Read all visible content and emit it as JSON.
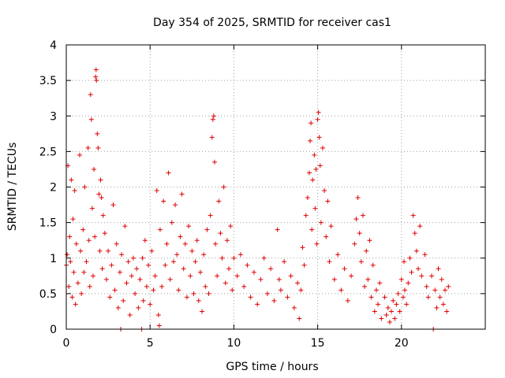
{
  "chart_data": {
    "type": "scatter",
    "title": "Day 354 of 2025, SRMTID for receiver cas1",
    "xlabel": "GPS time / hours",
    "ylabel": "SRMTID / TECUs",
    "xlim": [
      0,
      25
    ],
    "ylim": [
      0,
      4
    ],
    "xticks": [
      0,
      5,
      10,
      15,
      20
    ],
    "yticks": [
      0,
      0.5,
      1,
      1.5,
      2,
      2.5,
      3,
      3.5,
      4
    ],
    "grid": true,
    "marker": "+",
    "color": "#e00000",
    "series": [
      {
        "name": "SRMTID",
        "points": [
          [
            0.0,
            0.9
          ],
          [
            0.05,
            1.05
          ],
          [
            0.1,
            2.3
          ],
          [
            0.15,
            0.6
          ],
          [
            0.2,
            1.3
          ],
          [
            0.25,
            0.95
          ],
          [
            0.3,
            2.1
          ],
          [
            0.35,
            0.45
          ],
          [
            0.4,
            1.55
          ],
          [
            0.45,
            0.8
          ],
          [
            0.5,
            1.95
          ],
          [
            0.55,
            0.35
          ],
          [
            0.6,
            1.2
          ],
          [
            0.7,
            0.65
          ],
          [
            0.8,
            2.45
          ],
          [
            0.85,
            1.1
          ],
          [
            0.9,
            0.5
          ],
          [
            1.0,
            1.4
          ],
          [
            1.05,
            0.8
          ],
          [
            1.1,
            2.0
          ],
          [
            1.2,
            0.95
          ],
          [
            1.3,
            2.55
          ],
          [
            1.35,
            1.25
          ],
          [
            1.4,
            0.6
          ],
          [
            1.45,
            3.3
          ],
          [
            1.5,
            2.95
          ],
          [
            1.55,
            1.7
          ],
          [
            1.6,
            0.75
          ],
          [
            1.65,
            2.25
          ],
          [
            1.7,
            1.3
          ],
          [
            1.75,
            3.55
          ],
          [
            1.78,
            3.65
          ],
          [
            1.8,
            3.5
          ],
          [
            1.85,
            2.75
          ],
          [
            1.9,
            2.55
          ],
          [
            1.95,
            1.9
          ],
          [
            2.0,
            1.1
          ],
          [
            2.05,
            2.1
          ],
          [
            2.1,
            1.85
          ],
          [
            2.15,
            0.85
          ],
          [
            2.2,
            1.6
          ],
          [
            2.3,
            1.35
          ],
          [
            2.4,
            0.7
          ],
          [
            2.5,
            1.1
          ],
          [
            2.6,
            0.45
          ],
          [
            2.7,
            0.9
          ],
          [
            2.8,
            1.75
          ],
          [
            2.9,
            0.55
          ],
          [
            3.0,
            1.2
          ],
          [
            3.1,
            0.3
          ],
          [
            3.2,
            0.8
          ],
          [
            3.25,
            0.0
          ],
          [
            3.3,
            1.05
          ],
          [
            3.4,
            0.4
          ],
          [
            3.5,
            1.45
          ],
          [
            3.6,
            0.65
          ],
          [
            3.7,
            0.95
          ],
          [
            3.8,
            0.2
          ],
          [
            3.9,
            0.75
          ],
          [
            4.0,
            1.0
          ],
          [
            4.1,
            0.5
          ],
          [
            4.2,
            0.85
          ],
          [
            4.3,
            0.3
          ],
          [
            4.4,
            0.7
          ],
          [
            4.5,
            0.0
          ],
          [
            4.55,
            1.0
          ],
          [
            4.6,
            0.4
          ],
          [
            4.7,
            1.25
          ],
          [
            4.8,
            0.6
          ],
          [
            4.9,
            0.9
          ],
          [
            5.0,
            0.35
          ],
          [
            5.1,
            1.1
          ],
          [
            5.2,
            0.55
          ],
          [
            5.3,
            0.75
          ],
          [
            5.4,
            1.95
          ],
          [
            5.5,
            0.2
          ],
          [
            5.55,
            0.05
          ],
          [
            5.6,
            1.4
          ],
          [
            5.7,
            0.6
          ],
          [
            5.8,
            1.8
          ],
          [
            5.9,
            0.9
          ],
          [
            6.0,
            1.2
          ],
          [
            6.1,
            2.2
          ],
          [
            6.2,
            0.7
          ],
          [
            6.3,
            1.5
          ],
          [
            6.4,
            0.95
          ],
          [
            6.5,
            1.75
          ],
          [
            6.6,
            1.05
          ],
          [
            6.7,
            0.55
          ],
          [
            6.8,
            1.3
          ],
          [
            6.9,
            1.9
          ],
          [
            7.0,
            0.85
          ],
          [
            7.1,
            1.2
          ],
          [
            7.2,
            0.45
          ],
          [
            7.3,
            1.45
          ],
          [
            7.4,
            0.75
          ],
          [
            7.5,
            1.1
          ],
          [
            7.6,
            0.5
          ],
          [
            7.7,
            0.95
          ],
          [
            7.8,
            1.25
          ],
          [
            7.9,
            0.4
          ],
          [
            8.0,
            0.8
          ],
          [
            8.1,
            0.25
          ],
          [
            8.2,
            1.05
          ],
          [
            8.3,
            0.6
          ],
          [
            8.4,
            1.4
          ],
          [
            8.5,
            0.5
          ],
          [
            8.6,
            1.6
          ],
          [
            8.7,
            2.7
          ],
          [
            8.75,
            2.95
          ],
          [
            8.8,
            3.0
          ],
          [
            8.85,
            2.35
          ],
          [
            8.9,
            1.2
          ],
          [
            9.0,
            0.75
          ],
          [
            9.1,
            1.8
          ],
          [
            9.2,
            1.35
          ],
          [
            9.3,
            1.0
          ],
          [
            9.4,
            2.0
          ],
          [
            9.5,
            0.65
          ],
          [
            9.6,
            1.25
          ],
          [
            9.7,
            0.85
          ],
          [
            9.8,
            1.45
          ],
          [
            9.9,
            0.55
          ],
          [
            10.0,
            1.0
          ],
          [
            10.2,
            0.75
          ],
          [
            10.4,
            1.05
          ],
          [
            10.6,
            0.6
          ],
          [
            10.8,
            0.9
          ],
          [
            11.0,
            0.45
          ],
          [
            11.2,
            0.8
          ],
          [
            11.4,
            0.35
          ],
          [
            11.6,
            0.7
          ],
          [
            11.8,
            1.0
          ],
          [
            12.0,
            0.5
          ],
          [
            12.2,
            0.85
          ],
          [
            12.4,
            0.4
          ],
          [
            12.6,
            1.4
          ],
          [
            12.7,
            0.7
          ],
          [
            12.8,
            0.55
          ],
          [
            13.0,
            0.95
          ],
          [
            13.2,
            0.45
          ],
          [
            13.4,
            0.75
          ],
          [
            13.6,
            0.3
          ],
          [
            13.8,
            0.65
          ],
          [
            13.9,
            0.15
          ],
          [
            14.0,
            0.55
          ],
          [
            14.1,
            1.15
          ],
          [
            14.2,
            0.9
          ],
          [
            14.3,
            1.6
          ],
          [
            14.4,
            1.85
          ],
          [
            14.5,
            2.2
          ],
          [
            14.55,
            2.65
          ],
          [
            14.6,
            2.9
          ],
          [
            14.65,
            1.4
          ],
          [
            14.7,
            2.1
          ],
          [
            14.8,
            2.45
          ],
          [
            14.85,
            1.7
          ],
          [
            14.9,
            2.25
          ],
          [
            14.95,
            1.2
          ],
          [
            15.0,
            2.95
          ],
          [
            15.05,
            3.05
          ],
          [
            15.1,
            2.7
          ],
          [
            15.15,
            2.3
          ],
          [
            15.2,
            1.5
          ],
          [
            15.3,
            2.55
          ],
          [
            15.4,
            1.95
          ],
          [
            15.5,
            1.3
          ],
          [
            15.6,
            1.8
          ],
          [
            15.7,
            0.95
          ],
          [
            15.8,
            1.45
          ],
          [
            16.0,
            0.7
          ],
          [
            16.2,
            1.05
          ],
          [
            16.4,
            0.55
          ],
          [
            16.6,
            0.85
          ],
          [
            16.8,
            0.4
          ],
          [
            17.0,
            0.75
          ],
          [
            17.2,
            1.2
          ],
          [
            17.3,
            1.55
          ],
          [
            17.4,
            1.85
          ],
          [
            17.5,
            1.35
          ],
          [
            17.6,
            0.95
          ],
          [
            17.7,
            1.6
          ],
          [
            17.8,
            0.6
          ],
          [
            17.9,
            1.1
          ],
          [
            18.0,
            0.7
          ],
          [
            18.1,
            1.25
          ],
          [
            18.2,
            0.45
          ],
          [
            18.3,
            0.9
          ],
          [
            18.4,
            0.25
          ],
          [
            18.5,
            0.55
          ],
          [
            18.6,
            0.35
          ],
          [
            18.7,
            0.65
          ],
          [
            18.8,
            0.15
          ],
          [
            19.0,
            0.45
          ],
          [
            19.1,
            0.2
          ],
          [
            19.2,
            0.3
          ],
          [
            19.3,
            0.1
          ],
          [
            19.4,
            0.25
          ],
          [
            19.5,
            0.4
          ],
          [
            19.6,
            0.15
          ],
          [
            19.7,
            0.35
          ],
          [
            19.8,
            0.5
          ],
          [
            19.9,
            0.25
          ],
          [
            20.0,
            0.7
          ],
          [
            20.1,
            0.45
          ],
          [
            20.15,
            0.95
          ],
          [
            20.2,
            0.55
          ],
          [
            20.3,
            0.35
          ],
          [
            20.4,
            0.65
          ],
          [
            20.5,
            1.0
          ],
          [
            20.6,
            0.8
          ],
          [
            20.7,
            1.6
          ],
          [
            20.8,
            1.35
          ],
          [
            20.9,
            1.1
          ],
          [
            21.0,
            0.85
          ],
          [
            21.1,
            1.45
          ],
          [
            21.2,
            0.75
          ],
          [
            21.4,
            1.05
          ],
          [
            21.5,
            0.6
          ],
          [
            21.6,
            0.45
          ],
          [
            21.8,
            0.75
          ],
          [
            21.9,
            0.0
          ],
          [
            22.0,
            0.55
          ],
          [
            22.1,
            0.3
          ],
          [
            22.2,
            0.85
          ],
          [
            22.3,
            0.45
          ],
          [
            22.4,
            0.7
          ],
          [
            22.5,
            0.35
          ],
          [
            22.6,
            0.55
          ],
          [
            22.7,
            0.25
          ],
          [
            22.8,
            0.6
          ]
        ]
      }
    ]
  }
}
